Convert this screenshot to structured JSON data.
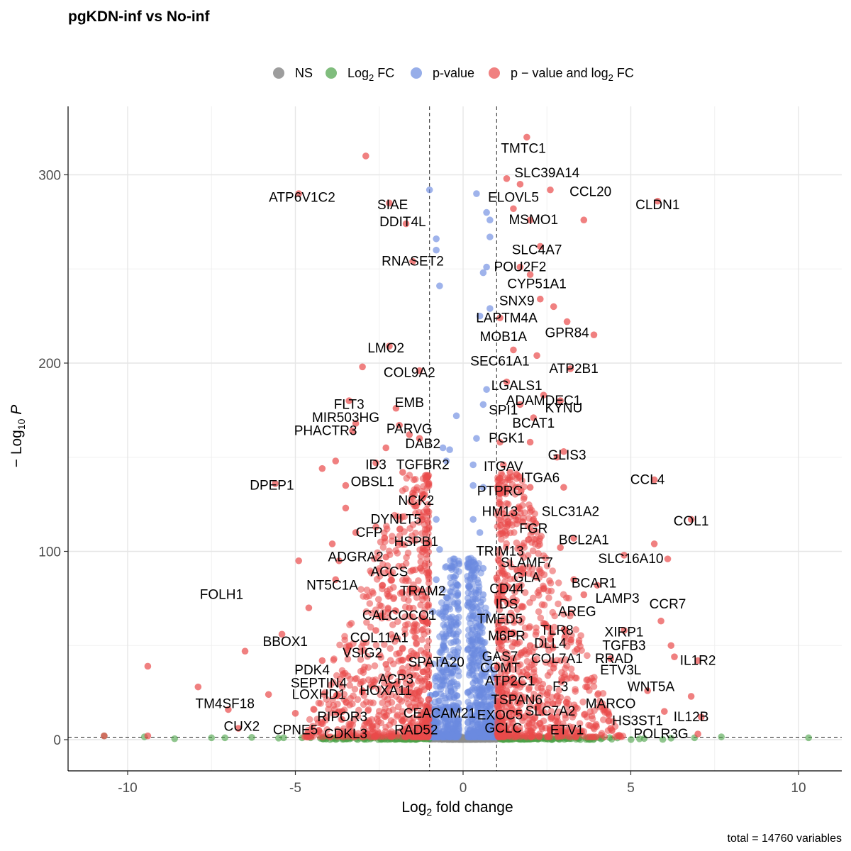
{
  "chart_data": {
    "type": "scatter",
    "title": "pgKDN-inf vs No-inf",
    "xlabel": "Log2 fold change",
    "ylabel": "−Log10 P",
    "caption": "total = 14760 variables",
    "xlim": [
      -12,
      12
    ],
    "ylim": [
      -15,
      335
    ],
    "x_ticks": [
      -10,
      -5,
      0,
      5,
      10
    ],
    "x_tick_labels": [
      "-10",
      "-5",
      "0",
      "5",
      "10"
    ],
    "y_ticks": [
      0,
      100,
      200,
      300
    ],
    "y_tick_labels": [
      "0",
      "100",
      "200",
      "300"
    ],
    "fc_cutoff": 1,
    "p_cutoff_log10": 1.3,
    "grid": true,
    "legend_position": "top",
    "legend": [
      {
        "key": "NS",
        "label": "NS",
        "color": "#8c8c8c"
      },
      {
        "key": "FC",
        "label": "Log2 FC",
        "color": "#4aa146"
      },
      {
        "key": "P",
        "label": "p-value",
        "color": "#6b8be0"
      },
      {
        "key": "PFC",
        "label": "p − value and log2 FC",
        "color": "#ea4a4a"
      }
    ],
    "total_variables": 14760,
    "points_fc": [
      [
        -10.7,
        2
      ],
      [
        -9.5,
        1.5
      ],
      [
        -8.6,
        0.5
      ],
      [
        -7.5,
        1
      ],
      [
        -7.1,
        1
      ],
      [
        -6.3,
        1.2
      ],
      [
        -5.5,
        0.8
      ],
      [
        -4.8,
        1
      ],
      [
        -4.2,
        0.6
      ],
      [
        -3.6,
        0.7
      ],
      [
        -2.9,
        0.9
      ],
      [
        -2.3,
        1.1
      ],
      [
        -1.8,
        0.5
      ],
      [
        -1.3,
        0.8
      ],
      [
        1.3,
        0.9
      ],
      [
        1.8,
        0.6
      ],
      [
        2.4,
        1
      ],
      [
        3.1,
        0.7
      ],
      [
        3.8,
        0.5
      ],
      [
        4.6,
        0.9
      ],
      [
        5.4,
        0.6
      ],
      [
        6.2,
        0.8
      ],
      [
        6.9,
        1
      ],
      [
        7.7,
        1.5
      ],
      [
        10.3,
        1
      ]
    ],
    "points_p": [
      [
        -1.0,
        292
      ],
      [
        -0.8,
        266
      ],
      [
        -0.8,
        260
      ],
      [
        -0.7,
        241
      ],
      [
        0.4,
        290
      ],
      [
        0.7,
        280
      ],
      [
        0.8,
        267
      ],
      [
        0.8,
        276
      ],
      [
        0.7,
        251
      ],
      [
        0.6,
        248
      ],
      [
        0.5,
        225
      ],
      [
        0.8,
        229
      ],
      [
        0.7,
        186
      ],
      [
        0.6,
        178
      ],
      [
        -0.2,
        172
      ],
      [
        0.4,
        160
      ],
      [
        0.3,
        146
      ],
      [
        -0.6,
        155
      ],
      [
        -0.4,
        154
      ],
      [
        -0.5,
        148
      ],
      [
        0.3,
        135
      ],
      [
        0.6,
        134
      ],
      [
        -0.8,
        117
      ],
      [
        0.3,
        117
      ],
      [
        0.5,
        110
      ],
      [
        -0.7,
        101
      ],
      [
        0.6,
        91
      ],
      [
        -0.8,
        85
      ],
      [
        0.6,
        77
      ],
      [
        -0.9,
        68
      ],
      [
        0.4,
        60
      ],
      [
        -0.5,
        55
      ],
      [
        0.6,
        46
      ],
      [
        -0.7,
        38
      ],
      [
        0.3,
        30
      ],
      [
        -0.4,
        22
      ],
      [
        0.8,
        18
      ],
      [
        -0.6,
        12
      ],
      [
        0.5,
        8
      ],
      [
        -0.3,
        6
      ],
      [
        0.2,
        5
      ],
      [
        -0.8,
        4
      ]
    ],
    "points_pfc": [
      [
        -2.9,
        310
      ],
      [
        -4.9,
        290
      ],
      [
        -2.2,
        285
      ],
      [
        -1.7,
        274
      ],
      [
        -1.5,
        254
      ],
      [
        1.9,
        320
      ],
      [
        1.3,
        298
      ],
      [
        1.7,
        295
      ],
      [
        2.6,
        292
      ],
      [
        3.6,
        276
      ],
      [
        5.8,
        286
      ],
      [
        2.3,
        262
      ],
      [
        2.0,
        276
      ],
      [
        1.5,
        282
      ],
      [
        1.7,
        251
      ],
      [
        2.0,
        247
      ],
      [
        2.7,
        230
      ],
      [
        2.3,
        234
      ],
      [
        3.9,
        215
      ],
      [
        3.1,
        222
      ],
      [
        1.1,
        224
      ],
      [
        2.2,
        204
      ],
      [
        -2.2,
        209
      ],
      [
        -3.0,
        198
      ],
      [
        -1.3,
        196
      ],
      [
        3.2,
        197
      ],
      [
        1.5,
        207
      ],
      [
        1.3,
        190
      ],
      [
        2.9,
        180
      ],
      [
        2.4,
        183
      ],
      [
        -3.4,
        180
      ],
      [
        -2.0,
        176
      ],
      [
        -3.2,
        168
      ],
      [
        -1.9,
        167
      ],
      [
        -3.3,
        164
      ],
      [
        -1.6,
        162
      ],
      [
        1.7,
        178
      ],
      [
        2.1,
        171
      ],
      [
        -1.3,
        160
      ],
      [
        -2.3,
        155
      ],
      [
        1.1,
        158
      ],
      [
        2.0,
        158
      ],
      [
        2.8,
        150
      ],
      [
        3.0,
        153
      ],
      [
        1.2,
        146
      ],
      [
        -3.8,
        148
      ],
      [
        -2.6,
        147
      ],
      [
        -4.2,
        144
      ],
      [
        -1.8,
        142
      ],
      [
        1.4,
        142
      ],
      [
        5.7,
        138
      ],
      [
        -5.6,
        136
      ],
      [
        2.0,
        134
      ],
      [
        3.0,
        134
      ],
      [
        -3.5,
        135
      ],
      [
        -1.5,
        131
      ],
      [
        1.1,
        131
      ],
      [
        -1.4,
        124
      ],
      [
        -3.5,
        123
      ],
      [
        1.2,
        120
      ],
      [
        2.1,
        117
      ],
      [
        6.8,
        117
      ],
      [
        -2.6,
        113
      ],
      [
        1.3,
        113
      ],
      [
        -3.2,
        110
      ],
      [
        3.3,
        107
      ],
      [
        2.9,
        102
      ],
      [
        5.7,
        104
      ],
      [
        -3.9,
        104
      ],
      [
        -3.7,
        95
      ],
      [
        -2.3,
        97
      ],
      [
        -1.5,
        90
      ],
      [
        -4.9,
        95
      ],
      [
        4.8,
        98
      ],
      [
        6.1,
        96
      ],
      [
        -2.4,
        82
      ],
      [
        -3.8,
        85
      ],
      [
        1.0,
        86
      ],
      [
        2.4,
        80
      ],
      [
        3.3,
        85
      ],
      [
        4.0,
        82
      ],
      [
        -1.6,
        70
      ],
      [
        -4.6,
        70
      ],
      [
        -1.2,
        63
      ],
      [
        1.2,
        75
      ],
      [
        3.6,
        77
      ],
      [
        5.9,
        63
      ],
      [
        -5.4,
        56
      ],
      [
        -2.6,
        58
      ],
      [
        1.3,
        58
      ],
      [
        2.5,
        60
      ],
      [
        4.8,
        58
      ],
      [
        -6.5,
        47
      ],
      [
        -3.4,
        50
      ],
      [
        -1.9,
        46
      ],
      [
        2.0,
        50
      ],
      [
        3.4,
        48
      ],
      [
        6.2,
        50
      ],
      [
        -9.4,
        39
      ],
      [
        -4.2,
        42
      ],
      [
        -2.3,
        40
      ],
      [
        -1.2,
        36
      ],
      [
        1.4,
        40
      ],
      [
        2.7,
        38
      ],
      [
        4.4,
        43
      ],
      [
        6.3,
        44
      ],
      [
        7.0,
        42
      ],
      [
        -7.9,
        28
      ],
      [
        -5.8,
        24
      ],
      [
        -3.0,
        26
      ],
      [
        -1.5,
        22
      ],
      [
        1.3,
        26
      ],
      [
        2.5,
        24
      ],
      [
        3.7,
        28
      ],
      [
        5.5,
        26
      ],
      [
        6.8,
        23
      ],
      [
        -7.0,
        16
      ],
      [
        -5.0,
        14
      ],
      [
        -3.6,
        15
      ],
      [
        -1.8,
        10
      ],
      [
        1.5,
        14
      ],
      [
        2.8,
        12
      ],
      [
        4.2,
        16
      ],
      [
        6.0,
        15
      ],
      [
        7.1,
        12
      ],
      [
        -10.7,
        2
      ],
      [
        -9.4,
        2
      ],
      [
        -6.7,
        6
      ],
      [
        -4.3,
        5
      ],
      [
        -2.7,
        4
      ],
      [
        -1.2,
        3
      ],
      [
        1.2,
        4
      ],
      [
        2.6,
        5
      ],
      [
        4.4,
        6
      ],
      [
        7.0,
        3
      ]
    ],
    "labels": [
      {
        "text": "TMTC1",
        "x": 1.8,
        "y": 314
      },
      {
        "text": "SLC39A14",
        "x": 2.5,
        "y": 301
      },
      {
        "text": "ATP6V1C2",
        "x": -4.8,
        "y": 288
      },
      {
        "text": "ELOVL5",
        "x": 1.5,
        "y": 288
      },
      {
        "text": "CCL20",
        "x": 3.8,
        "y": 291
      },
      {
        "text": "CLDN1",
        "x": 5.8,
        "y": 284
      },
      {
        "text": "SIAE",
        "x": -2.1,
        "y": 284
      },
      {
        "text": "DDIT4L",
        "x": -1.8,
        "y": 275
      },
      {
        "text": "MSMO1",
        "x": 2.1,
        "y": 276
      },
      {
        "text": "SLC4A7",
        "x": 2.2,
        "y": 260
      },
      {
        "text": "RNASET2",
        "x": -1.5,
        "y": 254
      },
      {
        "text": "POU2F2",
        "x": 1.7,
        "y": 251
      },
      {
        "text": "CYP51A1",
        "x": 2.2,
        "y": 242
      },
      {
        "text": "SNX9",
        "x": 1.6,
        "y": 233
      },
      {
        "text": "LAPTM4A",
        "x": 1.3,
        "y": 224
      },
      {
        "text": "MOB1A",
        "x": 1.2,
        "y": 214
      },
      {
        "text": "GPR84",
        "x": 3.1,
        "y": 216
      },
      {
        "text": "LMO2",
        "x": -2.3,
        "y": 208
      },
      {
        "text": "SEC61A1",
        "x": 1.1,
        "y": 201
      },
      {
        "text": "ATP2B1",
        "x": 3.3,
        "y": 197
      },
      {
        "text": "COL9A2",
        "x": -1.6,
        "y": 195
      },
      {
        "text": "LGALS1",
        "x": 1.6,
        "y": 188
      },
      {
        "text": "ADAMDEC1",
        "x": 2.4,
        "y": 180
      },
      {
        "text": "FLT3",
        "x": -3.4,
        "y": 178
      },
      {
        "text": "EMB",
        "x": -1.6,
        "y": 179
      },
      {
        "text": "SPI1",
        "x": 1.2,
        "y": 175
      },
      {
        "text": "KYNU",
        "x": 3.0,
        "y": 176
      },
      {
        "text": "MIR503HG",
        "x": -3.5,
        "y": 171
      },
      {
        "text": "BCAT1",
        "x": 2.1,
        "y": 168
      },
      {
        "text": "PHACTR3",
        "x": -4.1,
        "y": 164
      },
      {
        "text": "PARVG",
        "x": -1.6,
        "y": 165
      },
      {
        "text": "PGK1",
        "x": 1.3,
        "y": 160
      },
      {
        "text": "DAB2",
        "x": -1.2,
        "y": 157
      },
      {
        "text": "GLIS3",
        "x": 3.1,
        "y": 151
      },
      {
        "text": "ID3",
        "x": -2.6,
        "y": 146
      },
      {
        "text": "TGFBR2",
        "x": -1.2,
        "y": 146
      },
      {
        "text": "ITGAV",
        "x": 1.2,
        "y": 145
      },
      {
        "text": "OBSL1",
        "x": -2.7,
        "y": 137
      },
      {
        "text": "ITGA6",
        "x": 2.3,
        "y": 139
      },
      {
        "text": "CCL4",
        "x": 5.5,
        "y": 138
      },
      {
        "text": "DPEP1",
        "x": -5.7,
        "y": 135
      },
      {
        "text": "PTPRC",
        "x": 1.1,
        "y": 132
      },
      {
        "text": "NCK2",
        "x": -1.4,
        "y": 127
      },
      {
        "text": "HM13",
        "x": 1.1,
        "y": 121
      },
      {
        "text": "SLC31A2",
        "x": 3.2,
        "y": 121
      },
      {
        "text": "DYNLT5",
        "x": -2.0,
        "y": 117
      },
      {
        "text": "COL1",
        "x": 6.8,
        "y": 116
      },
      {
        "text": "FGR",
        "x": 2.1,
        "y": 112
      },
      {
        "text": "CFP",
        "x": -2.8,
        "y": 110
      },
      {
        "text": "BCL2A1",
        "x": 3.6,
        "y": 106
      },
      {
        "text": "HSPB1",
        "x": -1.4,
        "y": 105
      },
      {
        "text": "TRIM13",
        "x": 1.1,
        "y": 100
      },
      {
        "text": "SLC16A10",
        "x": 5.0,
        "y": 96
      },
      {
        "text": "ADGRA2",
        "x": -3.2,
        "y": 97
      },
      {
        "text": "SLAMF7",
        "x": 1.9,
        "y": 94
      },
      {
        "text": "ACCS",
        "x": -2.2,
        "y": 89
      },
      {
        "text": "GLA",
        "x": 1.9,
        "y": 86
      },
      {
        "text": "BCAR1",
        "x": 3.9,
        "y": 83
      },
      {
        "text": "NT5C1A",
        "x": -3.9,
        "y": 82
      },
      {
        "text": "TRAM2",
        "x": -1.2,
        "y": 79
      },
      {
        "text": "CD44",
        "x": 1.3,
        "y": 80
      },
      {
        "text": "FOLH1",
        "x": -7.2,
        "y": 77
      },
      {
        "text": "LAMP3",
        "x": 4.6,
        "y": 75
      },
      {
        "text": "CCR7",
        "x": 6.1,
        "y": 72
      },
      {
        "text": "IDS",
        "x": 1.3,
        "y": 72
      },
      {
        "text": "AREG",
        "x": 3.4,
        "y": 68
      },
      {
        "text": "CALCOCO1",
        "x": -1.9,
        "y": 66
      },
      {
        "text": "TMED5",
        "x": 1.1,
        "y": 64
      },
      {
        "text": "TLR8",
        "x": 2.8,
        "y": 58
      },
      {
        "text": "XIRP1",
        "x": 4.8,
        "y": 57
      },
      {
        "text": "M6PR",
        "x": 1.3,
        "y": 55
      },
      {
        "text": "COL11A1",
        "x": -2.5,
        "y": 54
      },
      {
        "text": "BBOX1",
        "x": -5.3,
        "y": 52
      },
      {
        "text": "DLL4",
        "x": 2.6,
        "y": 51
      },
      {
        "text": "TGFB3",
        "x": 4.8,
        "y": 50
      },
      {
        "text": "VSIG2",
        "x": -3.0,
        "y": 46
      },
      {
        "text": "GAS7",
        "x": 1.1,
        "y": 44
      },
      {
        "text": "COL7A1",
        "x": 2.8,
        "y": 43
      },
      {
        "text": "RRAD",
        "x": 4.5,
        "y": 43
      },
      {
        "text": "IL1R2",
        "x": 7.0,
        "y": 42
      },
      {
        "text": "SPATA20",
        "x": -0.8,
        "y": 41
      },
      {
        "text": "COMT",
        "x": 1.1,
        "y": 38
      },
      {
        "text": "PDK4",
        "x": -4.5,
        "y": 37
      },
      {
        "text": "ETV3L",
        "x": 4.7,
        "y": 37
      },
      {
        "text": "ACP3",
        "x": -2.0,
        "y": 32
      },
      {
        "text": "ATP2C1",
        "x": 1.4,
        "y": 31
      },
      {
        "text": "SEPTIN4",
        "x": -4.3,
        "y": 30
      },
      {
        "text": "F3",
        "x": 2.9,
        "y": 28
      },
      {
        "text": "WNT5A",
        "x": 5.6,
        "y": 28
      },
      {
        "text": "LOXHD1",
        "x": -4.3,
        "y": 24
      },
      {
        "text": "HOXA11",
        "x": -2.3,
        "y": 26
      },
      {
        "text": "TSPAN6",
        "x": 1.6,
        "y": 21
      },
      {
        "text": "MARCO",
        "x": 4.4,
        "y": 19
      },
      {
        "text": "TM4SF18",
        "x": -7.1,
        "y": 19
      },
      {
        "text": "CEACAM21",
        "x": -0.7,
        "y": 14
      },
      {
        "text": "EXOC5",
        "x": 1.1,
        "y": 13
      },
      {
        "text": "SLC7A2",
        "x": 2.6,
        "y": 15
      },
      {
        "text": "IL12B",
        "x": 6.8,
        "y": 12
      },
      {
        "text": "RIPOR3",
        "x": -3.6,
        "y": 12
      },
      {
        "text": "HS3ST1",
        "x": 5.2,
        "y": 10
      },
      {
        "text": "CUX2",
        "x": -6.6,
        "y": 7
      },
      {
        "text": "CPNE5",
        "x": -5.0,
        "y": 5
      },
      {
        "text": "RAD52",
        "x": -1.4,
        "y": 5
      },
      {
        "text": "GCLC",
        "x": 1.2,
        "y": 6
      },
      {
        "text": "ETV1",
        "x": 3.1,
        "y": 5
      },
      {
        "text": "CDKL3",
        "x": -3.5,
        "y": 3
      },
      {
        "text": "POLR3G",
        "x": 5.9,
        "y": 3
      }
    ]
  }
}
